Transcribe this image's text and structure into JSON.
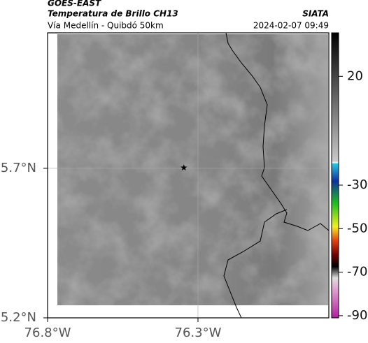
{
  "header": {
    "satellite": "GOES-EAST",
    "product": "Temperatura de Brillo CH13",
    "region": "Vía Medellín - Quibdó 50km",
    "source": "SIATA",
    "datetime": "2024-02-07 09:49"
  },
  "map": {
    "xlim": [
      -76.8,
      -75.865
    ],
    "ylim": [
      5.2,
      6.153
    ],
    "xticks": [
      {
        "value": -76.8,
        "label": "76.8°W"
      },
      {
        "value": -76.3,
        "label": "76.3°W"
      }
    ],
    "yticks": [
      {
        "value": 5.2,
        "label": "5.2°N"
      },
      {
        "value": 5.7,
        "label": "5.7°N"
      }
    ],
    "grid": true,
    "marker": {
      "lon": -76.347,
      "lat": 5.702
    }
  },
  "colorbar": {
    "lim": [
      40,
      -91
    ],
    "ticks": [
      20,
      -30,
      -50,
      -70,
      -90
    ]
  }
}
